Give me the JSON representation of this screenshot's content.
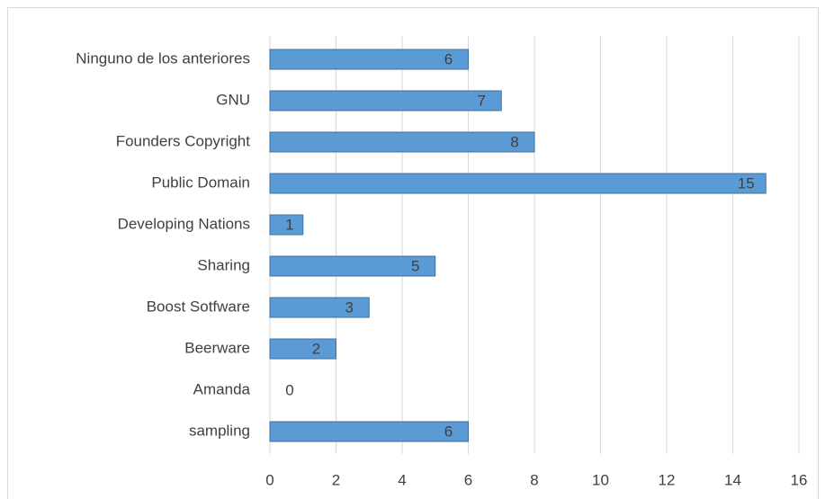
{
  "chart_data": {
    "type": "bar",
    "orientation": "horizontal",
    "categories": [
      "Ninguno de los anteriores",
      "GNU",
      "Founders Copyright",
      "Public Domain",
      "Developing Nations",
      "Sharing",
      "Boost Sotfware",
      "Beerware",
      "Amanda",
      "sampling"
    ],
    "values": [
      6,
      7,
      8,
      15,
      1,
      5,
      3,
      2,
      0,
      6
    ],
    "color": "#5b9bd5",
    "xlim": [
      0,
      16
    ],
    "xticks": [
      0,
      2,
      4,
      6,
      8,
      10,
      12,
      14,
      16
    ],
    "grid": true,
    "data_labels": true
  }
}
